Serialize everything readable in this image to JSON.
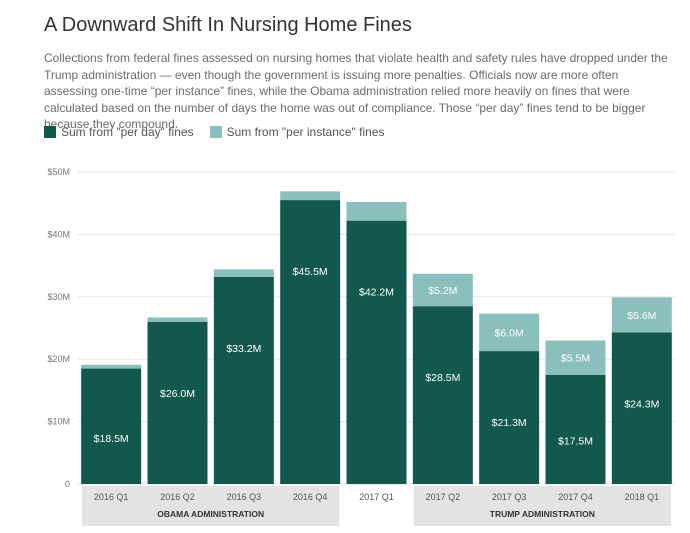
{
  "title": "A Downward Shift In Nursing Home Fines",
  "subtitle": "Collections from federal fines assessed on nursing homes that violate health and safety rules have dropped under the Trump administration — even though the government is issuing more penalties. Officials now are more often assessing one-time “per instance” fines, while the Obama administration relied more heavily on fines that were calculated based on the number of days the home was out of compliance. Those “per day” fines tend to be bigger because they compound.",
  "legend": {
    "per_day": "Sum from \"per day\" fines",
    "per_instance": "Sum from \"per instance\" fines"
  },
  "colors": {
    "per_day": "#12584f",
    "per_instance": "#8bbfbd",
    "admin_band": "#e3e3e3",
    "grid": "#e6e6e6"
  },
  "chart_data": {
    "type": "bar",
    "stacked": true,
    "categories": [
      "2016 Q1",
      "2016 Q2",
      "2016 Q3",
      "2016 Q4",
      "2017 Q1",
      "2017 Q2",
      "2017 Q3",
      "2017 Q4",
      "2018 Q1"
    ],
    "series": [
      {
        "name": "Sum from \"per day\" fines",
        "values": [
          18.5,
          26.0,
          33.2,
          45.5,
          42.2,
          28.5,
          21.3,
          17.5,
          24.3
        ],
        "labels": [
          "$18.5M",
          "$26.0M",
          "$33.2M",
          "$45.5M",
          "$42.2M",
          "$28.5M",
          "$21.3M",
          "$17.5M",
          "$24.3M"
        ]
      },
      {
        "name": "Sum from \"per instance\" fines",
        "values": [
          0.6,
          0.7,
          1.2,
          1.4,
          3.0,
          5.2,
          6.0,
          5.5,
          5.6
        ],
        "labels": [
          "",
          "",
          "",
          "",
          "",
          "$5.2M",
          "$6.0M",
          "$5.5M",
          "$5.6M"
        ]
      }
    ],
    "ylim": [
      0,
      50
    ],
    "yticks": [
      0,
      10,
      20,
      30,
      40,
      50
    ],
    "ytick_labels": [
      "0",
      "$10M",
      "$20M",
      "$30M",
      "$40M",
      "$50M"
    ],
    "grid": true,
    "legend_position": "top-left",
    "groups": [
      {
        "label": "OBAMA ADMINISTRATION",
        "from": 0,
        "to": 3
      },
      {
        "label": "TRUMP ADMINISTRATION",
        "from": 5,
        "to": 8
      }
    ]
  }
}
